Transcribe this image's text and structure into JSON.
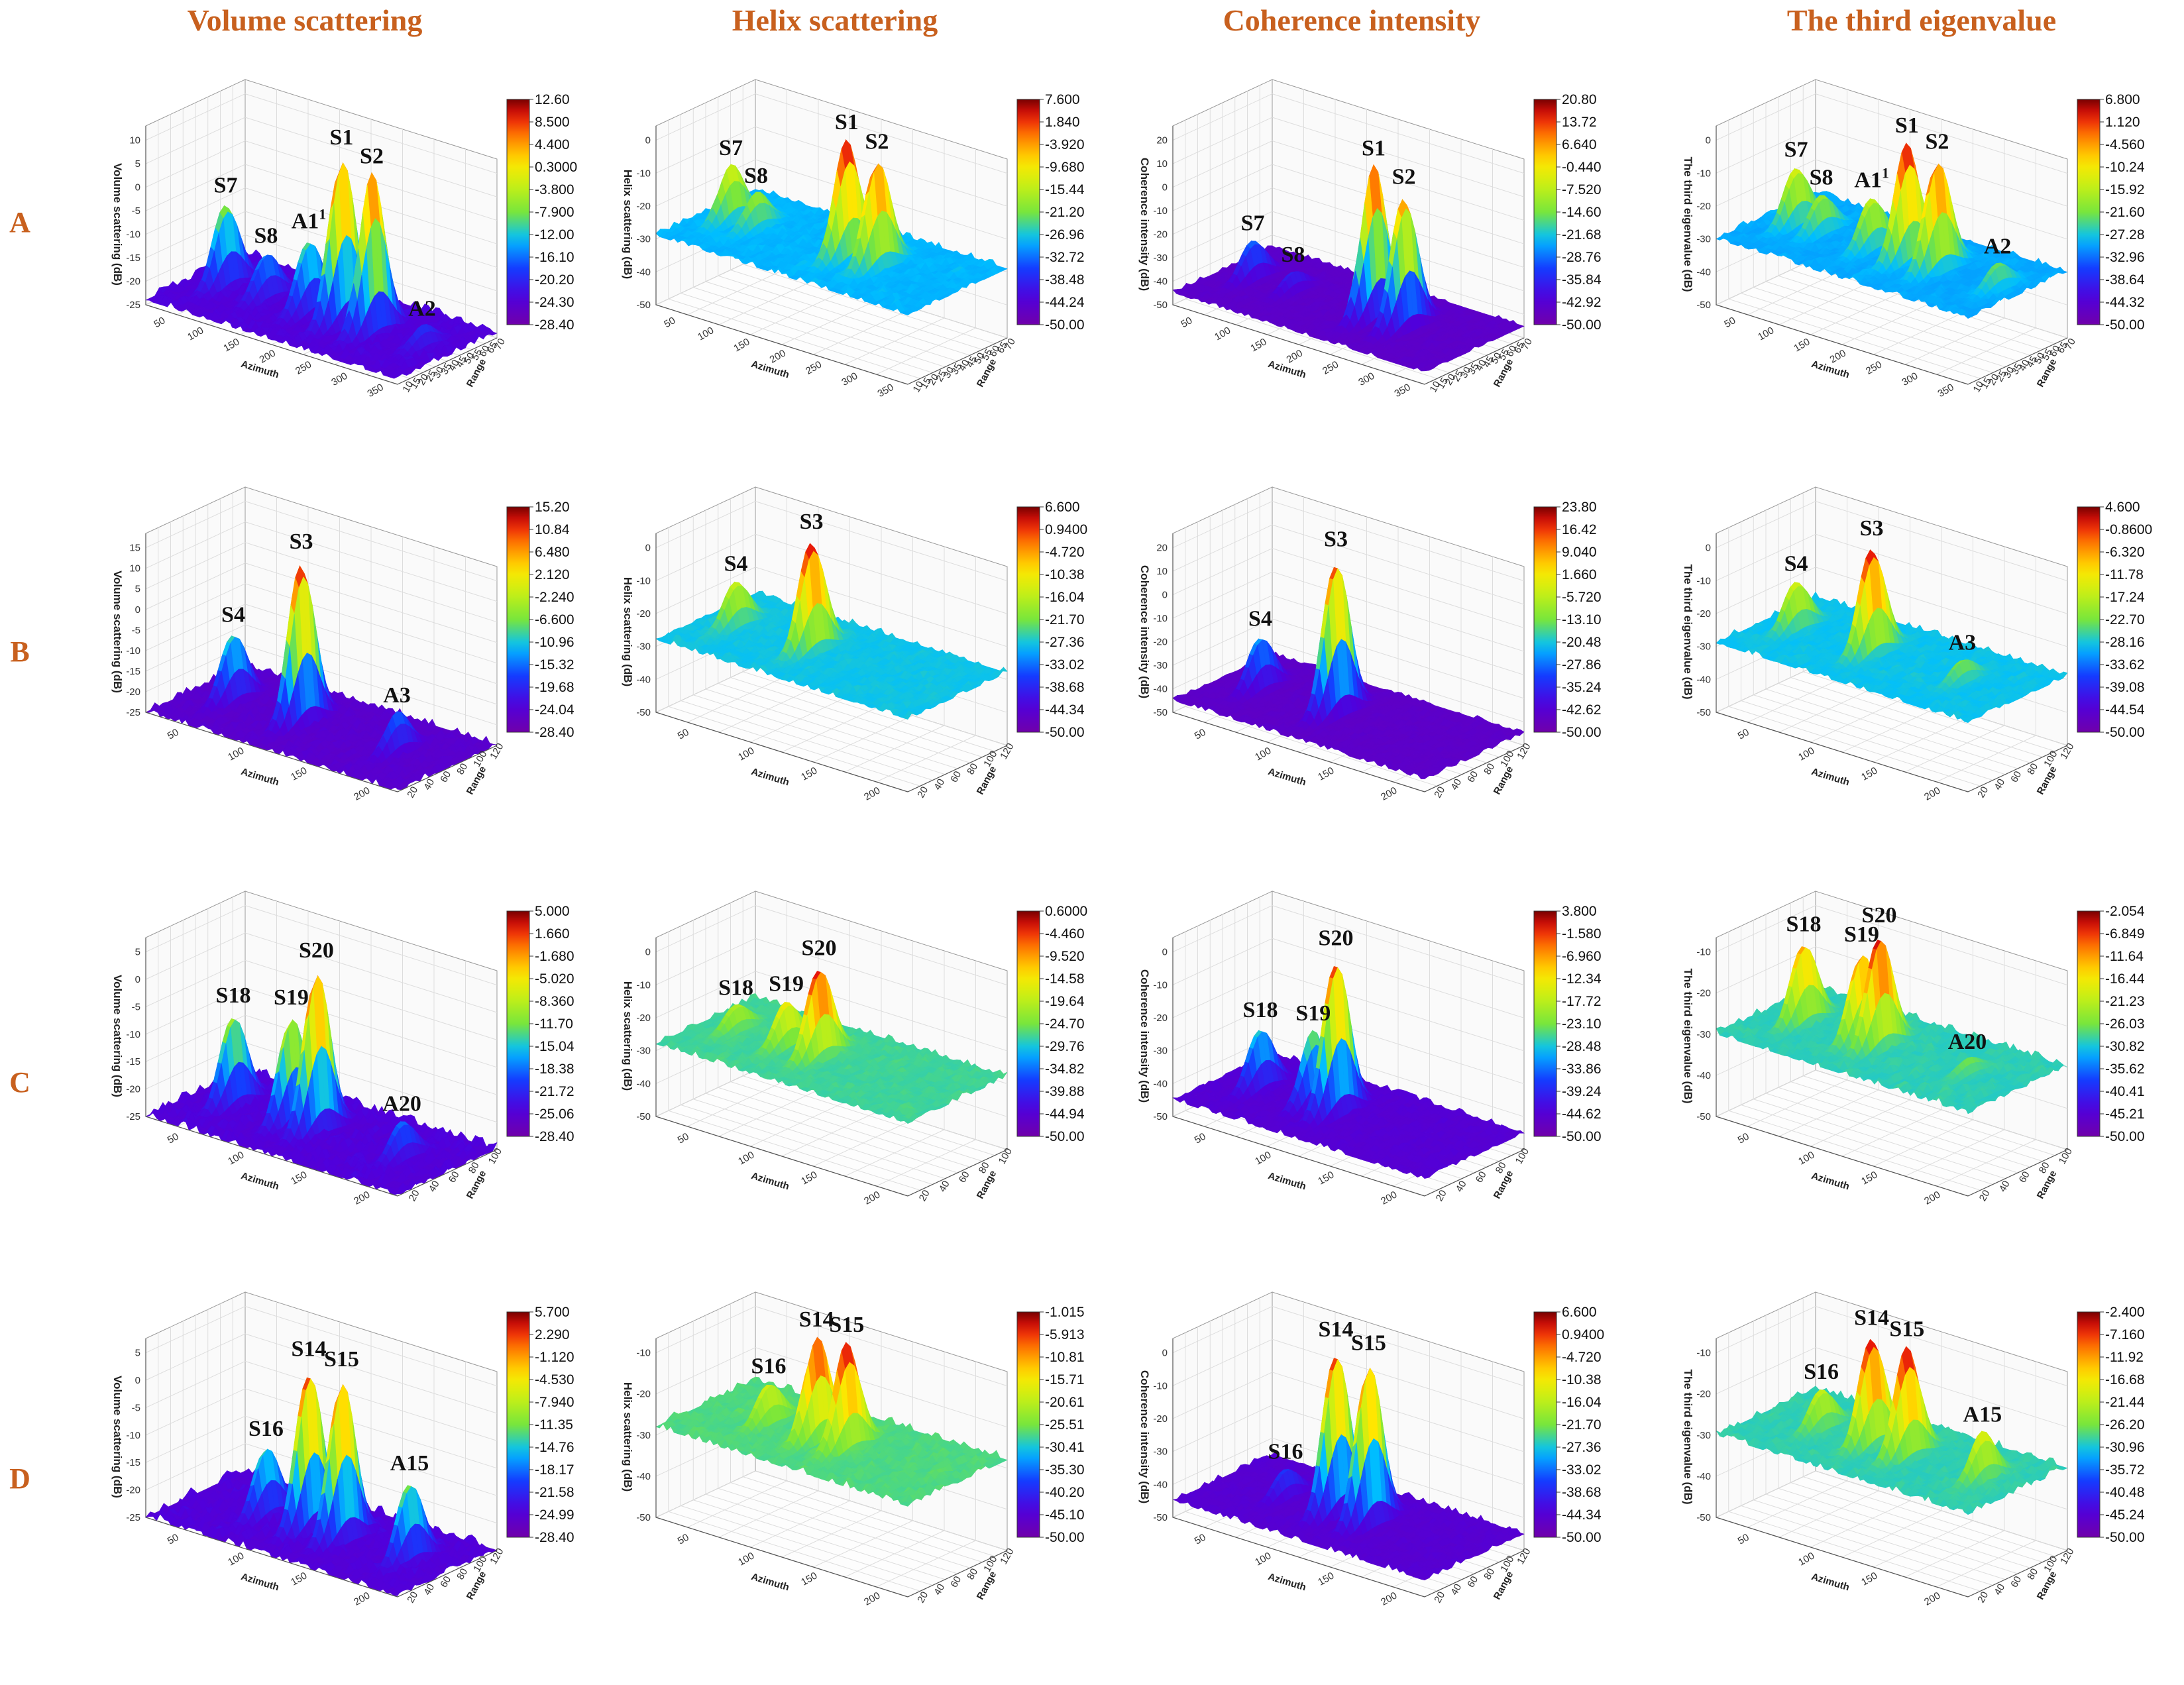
{
  "column_titles": [
    "Volume scattering",
    "Helix scattering",
    "Coherence intensity",
    "The third eigenvalue"
  ],
  "row_labels": [
    "A",
    "B",
    "C",
    "D"
  ],
  "chart_data": [
    {
      "id": "A1",
      "type": "surface3d",
      "ylabel": "Volume scattering (dB)",
      "xlabel": "Azimuth",
      "zlabel": "Range",
      "zticks": [
        "-25",
        "-20",
        "-15",
        "-10",
        "-5",
        "0",
        "5",
        "10"
      ],
      "zrange": [
        -28.4,
        12.6
      ],
      "colorbar": [
        "12.60",
        "8.500",
        "4.400",
        "0.3000",
        "-3.800",
        "-7.900",
        "-12.00",
        "-16.10",
        "-20.20",
        "-24.30",
        "-28.40"
      ],
      "xticks": [
        "50",
        "100",
        "150",
        "200",
        "250",
        "300",
        "350"
      ],
      "rticks": [
        "10",
        "15",
        "20",
        "25",
        "30",
        "35",
        "40",
        "45",
        "50",
        "55",
        "60",
        "65",
        "70"
      ],
      "base": -24,
      "peaks": [
        {
          "label": "S7",
          "x": 0.12,
          "r": 0.5,
          "z": -6
        },
        {
          "label": "S8",
          "x": 0.28,
          "r": 0.5,
          "z": -14
        },
        {
          "label": "A1",
          "sup": "1",
          "x": 0.45,
          "r": 0.5,
          "z": -8
        },
        {
          "label": "S1",
          "x": 0.58,
          "r": 0.5,
          "z": 12
        },
        {
          "label": "S2",
          "x": 0.7,
          "r": 0.5,
          "z": 10
        },
        {
          "label": "A2",
          "x": 0.9,
          "r": 0.5,
          "z": -19
        }
      ]
    },
    {
      "id": "A2",
      "type": "surface3d",
      "ylabel": "Helix scattering (dB)",
      "xlabel": "Azimuth",
      "zlabel": "Range",
      "zticks": [
        "-50",
        "-40",
        "-30",
        "-20",
        "-10",
        "0"
      ],
      "zrange": [
        -50,
        7.6
      ],
      "colorbar": [
        "7.600",
        "1.840",
        "-3.920",
        "-9.680",
        "-15.44",
        "-21.20",
        "-26.96",
        "-32.72",
        "-38.48",
        "-44.24",
        "-50.00"
      ],
      "xticks": [
        "50",
        "100",
        "150",
        "200",
        "250",
        "300",
        "350"
      ],
      "rticks": [
        "10",
        "15",
        "20",
        "25",
        "30",
        "35",
        "40",
        "45",
        "50",
        "55",
        "60",
        "65",
        "70"
      ],
      "base": -29,
      "peaks": [
        {
          "label": "S7",
          "x": 0.1,
          "r": 0.5,
          "z": -12
        },
        {
          "label": "S8",
          "x": 0.2,
          "r": 0.5,
          "z": -18
        },
        {
          "label": "S1",
          "x": 0.56,
          "r": 0.5,
          "z": 7
        },
        {
          "label": "S2",
          "x": 0.68,
          "r": 0.5,
          "z": 4
        }
      ]
    },
    {
      "id": "A3",
      "type": "surface3d",
      "ylabel": "Coherence intensity (dB)",
      "xlabel": "Azimuth",
      "zlabel": "Range",
      "zticks": [
        "-50",
        "-40",
        "-30",
        "-20",
        "-10",
        "0",
        "10",
        "20"
      ],
      "zrange": [
        -50,
        20.8
      ],
      "colorbar": [
        "20.80",
        "13.72",
        "6.640",
        "-0.440",
        "-7.520",
        "-14.60",
        "-21.68",
        "-28.76",
        "-35.84",
        "-42.92",
        "-50.00"
      ],
      "xticks": [
        "50",
        "100",
        "150",
        "200",
        "250",
        "300",
        "350"
      ],
      "rticks": [
        "10",
        "15",
        "20",
        "25",
        "30",
        "35",
        "40",
        "45",
        "50",
        "55",
        "60",
        "65",
        "70"
      ],
      "base": -45,
      "peaks": [
        {
          "label": "S7",
          "x": 0.12,
          "r": 0.5,
          "z": -28
        },
        {
          "label": "S8",
          "x": 0.28,
          "r": 0.5,
          "z": -36
        },
        {
          "label": "S1",
          "x": 0.6,
          "r": 0.5,
          "z": 20
        },
        {
          "label": "S2",
          "x": 0.72,
          "r": 0.5,
          "z": 12
        }
      ]
    },
    {
      "id": "A4",
      "type": "surface3d",
      "ylabel": "The third eigenvalue (dB)",
      "xlabel": "Azimuth",
      "zlabel": "Range",
      "zticks": [
        "-50",
        "-40",
        "-30",
        "-20",
        "-10",
        "0"
      ],
      "zrange": [
        -50,
        6.8
      ],
      "colorbar": [
        "6.800",
        "1.120",
        "-4.560",
        "-10.24",
        "-15.92",
        "-21.60",
        "-27.28",
        "-32.96",
        "-38.64",
        "-44.32",
        "-50.00"
      ],
      "xticks": [
        "50",
        "100",
        "150",
        "200",
        "250",
        "300",
        "350"
      ],
      "rticks": [
        "10",
        "15",
        "20",
        "25",
        "30",
        "35",
        "40",
        "45",
        "50",
        "55",
        "60",
        "65",
        "70"
      ],
      "base": -30,
      "peaks": [
        {
          "label": "S7",
          "x": 0.12,
          "r": 0.5,
          "z": -12
        },
        {
          "label": "S8",
          "x": 0.22,
          "r": 0.5,
          "z": -18
        },
        {
          "label": "A1",
          "sup": "1",
          "x": 0.42,
          "r": 0.5,
          "z": -14
        },
        {
          "label": "S1",
          "x": 0.56,
          "r": 0.5,
          "z": 6
        },
        {
          "label": "S2",
          "x": 0.68,
          "r": 0.5,
          "z": 4
        },
        {
          "label": "A2",
          "x": 0.92,
          "r": 0.5,
          "z": -22
        }
      ]
    },
    {
      "id": "B1",
      "type": "surface3d",
      "ylabel": "Volume scattering (dB)",
      "xlabel": "Azimuth",
      "zlabel": "Range",
      "zticks": [
        "-25",
        "-20",
        "-15",
        "-10",
        "-5",
        "0",
        "5",
        "10",
        "15"
      ],
      "zrange": [
        -28.4,
        15.2
      ],
      "colorbar": [
        "15.20",
        "10.84",
        "6.480",
        "2.120",
        "-2.240",
        "-6.600",
        "-10.96",
        "-15.32",
        "-19.68",
        "-24.04",
        "-28.40"
      ],
      "xticks": [
        "50",
        "100",
        "150",
        "200"
      ],
      "rticks": [
        "20",
        "40",
        "60",
        "80",
        "100",
        "120"
      ],
      "base": -25,
      "peaks": [
        {
          "label": "S4",
          "x": 0.15,
          "r": 0.5,
          "z": -8
        },
        {
          "label": "S3",
          "x": 0.42,
          "r": 0.5,
          "z": 15
        },
        {
          "label": "A3",
          "x": 0.8,
          "r": 0.5,
          "z": -15
        }
      ]
    },
    {
      "id": "B2",
      "type": "surface3d",
      "ylabel": "Helix scattering (dB)",
      "xlabel": "Azimuth",
      "zlabel": "Range",
      "zticks": [
        "-50",
        "-40",
        "-30",
        "-20",
        "-10",
        "0"
      ],
      "zrange": [
        -50,
        6.6
      ],
      "colorbar": [
        "6.600",
        "0.9400",
        "-4.720",
        "-10.38",
        "-16.04",
        "-21.70",
        "-27.36",
        "-33.02",
        "-38.68",
        "-44.34",
        "-50.00"
      ],
      "xticks": [
        "50",
        "100",
        "150",
        "200"
      ],
      "rticks": [
        "20",
        "40",
        "60",
        "80",
        "100",
        "120"
      ],
      "base": -28,
      "peaks": [
        {
          "label": "S4",
          "x": 0.12,
          "r": 0.5,
          "z": -14
        },
        {
          "label": "S3",
          "x": 0.42,
          "r": 0.5,
          "z": 6
        }
      ]
    },
    {
      "id": "B3",
      "type": "surface3d",
      "ylabel": "Coherence intensity (dB)",
      "xlabel": "Azimuth",
      "zlabel": "Range",
      "zticks": [
        "-50",
        "-40",
        "-30",
        "-20",
        "-10",
        "0",
        "10",
        "20"
      ],
      "zrange": [
        -50,
        23.8
      ],
      "colorbar": [
        "23.80",
        "16.42",
        "9.040",
        "1.660",
        "-5.720",
        "-13.10",
        "-20.48",
        "-27.86",
        "-35.24",
        "-42.62",
        "-50.00"
      ],
      "xticks": [
        "50",
        "100",
        "150",
        "200"
      ],
      "rticks": [
        "20",
        "40",
        "60",
        "80",
        "100",
        "120"
      ],
      "base": -45,
      "peaks": [
        {
          "label": "S4",
          "x": 0.15,
          "r": 0.5,
          "z": -22
        },
        {
          "label": "S3",
          "x": 0.45,
          "r": 0.5,
          "z": 22
        }
      ]
    },
    {
      "id": "B4",
      "type": "surface3d",
      "ylabel": "The third eigenvalue (dB)",
      "xlabel": "Azimuth",
      "zlabel": "Range",
      "zticks": [
        "-50",
        "-40",
        "-30",
        "-20",
        "-10",
        "0"
      ],
      "zrange": [
        -50,
        4.6
      ],
      "colorbar": [
        "4.600",
        "-0.8600",
        "-6.320",
        "-11.78",
        "-17.24",
        "-22.70",
        "-28.16",
        "-33.62",
        "-39.08",
        "-44.54",
        "-50.00"
      ],
      "xticks": [
        "50",
        "100",
        "150",
        "200"
      ],
      "rticks": [
        "20",
        "40",
        "60",
        "80",
        "100",
        "120"
      ],
      "base": -29,
      "peaks": [
        {
          "label": "S4",
          "x": 0.12,
          "r": 0.5,
          "z": -14
        },
        {
          "label": "S3",
          "x": 0.42,
          "r": 0.5,
          "z": 4
        },
        {
          "label": "A3",
          "x": 0.78,
          "r": 0.5,
          "z": -22
        }
      ]
    },
    {
      "id": "C1",
      "type": "surface3d",
      "ylabel": "Volume scattering (dB)",
      "xlabel": "Azimuth",
      "zlabel": "Range",
      "zticks": [
        "-25",
        "-20",
        "-15",
        "-10",
        "-5",
        "0",
        "5"
      ],
      "zrange": [
        -28.4,
        5
      ],
      "colorbar": [
        "5.000",
        "1.660",
        "-1.680",
        "-5.020",
        "-8.360",
        "-11.70",
        "-15.04",
        "-18.38",
        "-21.72",
        "-25.06",
        "-28.40"
      ],
      "xticks": [
        "50",
        "100",
        "150",
        "200"
      ],
      "rticks": [
        "20",
        "40",
        "60",
        "80",
        "100"
      ],
      "base": -25,
      "peaks": [
        {
          "label": "S18",
          "x": 0.15,
          "r": 0.5,
          "z": -8
        },
        {
          "label": "S19",
          "x": 0.38,
          "r": 0.5,
          "z": -5
        },
        {
          "label": "S20",
          "x": 0.48,
          "r": 0.5,
          "z": 5
        },
        {
          "label": "A20",
          "x": 0.82,
          "r": 0.5,
          "z": -18
        }
      ]
    },
    {
      "id": "C2",
      "type": "surface3d",
      "ylabel": "Helix scattering (dB)",
      "xlabel": "Azimuth",
      "zlabel": "Range",
      "zticks": [
        "-50",
        "-40",
        "-30",
        "-20",
        "-10",
        "0"
      ],
      "zrange": [
        -50,
        0.6
      ],
      "colorbar": [
        "0.6000",
        "-4.460",
        "-9.520",
        "-14.58",
        "-19.64",
        "-24.70",
        "-29.76",
        "-34.82",
        "-39.88",
        "-44.94",
        "-50.00"
      ],
      "xticks": [
        "50",
        "100",
        "150",
        "200"
      ],
      "rticks": [
        "20",
        "40",
        "60",
        "80",
        "100"
      ],
      "base": -28,
      "peaks": [
        {
          "label": "S18",
          "x": 0.12,
          "r": 0.5,
          "z": -20
        },
        {
          "label": "S19",
          "x": 0.32,
          "r": 0.5,
          "z": -14
        },
        {
          "label": "S20",
          "x": 0.45,
          "r": 0.5,
          "z": 0
        }
      ]
    },
    {
      "id": "C3",
      "type": "surface3d",
      "ylabel": "Coherence intensity (dB)",
      "xlabel": "Azimuth",
      "zlabel": "Range",
      "zticks": [
        "-50",
        "-40",
        "-30",
        "-20",
        "-10",
        "0"
      ],
      "zrange": [
        -50,
        3.8
      ],
      "colorbar": [
        "3.800",
        "-1.580",
        "-6.960",
        "-12.34",
        "-17.72",
        "-23.10",
        "-28.48",
        "-33.86",
        "-39.24",
        "-44.62",
        "-50.00"
      ],
      "xticks": [
        "50",
        "100",
        "150",
        "200"
      ],
      "rticks": [
        "20",
        "40",
        "60",
        "80",
        "100"
      ],
      "base": -45,
      "peaks": [
        {
          "label": "S18",
          "x": 0.15,
          "r": 0.5,
          "z": -26
        },
        {
          "label": "S19",
          "x": 0.36,
          "r": 0.5,
          "z": -22
        },
        {
          "label": "S20",
          "x": 0.45,
          "r": 0.5,
          "z": 3
        }
      ]
    },
    {
      "id": "C4",
      "type": "surface3d",
      "ylabel": "The third eigenvalue (dB)",
      "xlabel": "Azimuth",
      "zlabel": "Range",
      "zticks": [
        "-50",
        "-40",
        "-30",
        "-20",
        "-10"
      ],
      "zrange": [
        -50,
        -2.054
      ],
      "colorbar": [
        "-2.054",
        "-6.849",
        "-11.64",
        "-16.44",
        "-21.23",
        "-26.03",
        "-30.82",
        "-35.62",
        "-40.41",
        "-45.21",
        "-50.00"
      ],
      "xticks": [
        "50",
        "100",
        "150",
        "200"
      ],
      "rticks": [
        "20",
        "40",
        "60",
        "80",
        "100"
      ],
      "base": -30,
      "peaks": [
        {
          "label": "S18",
          "x": 0.15,
          "r": 0.5,
          "z": -10
        },
        {
          "label": "S19",
          "x": 0.38,
          "r": 0.5,
          "z": -8
        },
        {
          "label": "S20",
          "x": 0.45,
          "r": 0.5,
          "z": -2
        },
        {
          "label": "A20",
          "x": 0.8,
          "r": 0.5,
          "z": -26
        }
      ]
    },
    {
      "id": "D1",
      "type": "surface3d",
      "ylabel": "Volume scattering (dB)",
      "xlabel": "Azimuth",
      "zlabel": "Range",
      "zticks": [
        "-25",
        "-20",
        "-15",
        "-10",
        "-5",
        "0",
        "5"
      ],
      "zrange": [
        -28.4,
        5.7
      ],
      "colorbar": [
        "5.700",
        "2.290",
        "-1.120",
        "-4.530",
        "-7.940",
        "-11.35",
        "-14.76",
        "-18.17",
        "-21.58",
        "-24.99",
        "-28.40"
      ],
      "xticks": [
        "50",
        "100",
        "150",
        "200"
      ],
      "rticks": [
        "20",
        "40",
        "60",
        "80",
        "100",
        "120"
      ],
      "base": -25,
      "peaks": [
        {
          "label": "S16",
          "x": 0.28,
          "r": 0.5,
          "z": -12
        },
        {
          "label": "S14",
          "x": 0.45,
          "r": 0.5,
          "z": 5
        },
        {
          "label": "S15",
          "x": 0.58,
          "r": 0.5,
          "z": 5
        },
        {
          "label": "A15",
          "x": 0.85,
          "r": 0.5,
          "z": -10
        }
      ]
    },
    {
      "id": "D2",
      "type": "surface3d",
      "ylabel": "Helix scattering (dB)",
      "xlabel": "Azimuth",
      "zlabel": "Range",
      "zticks": [
        "-50",
        "-40",
        "-30",
        "-20",
        "-10"
      ],
      "zrange": [
        -50,
        -1.015
      ],
      "colorbar": [
        "-1.015",
        "-5.913",
        "-10.81",
        "-15.71",
        "-20.61",
        "-25.51",
        "-30.41",
        "-35.30",
        "-40.20",
        "-45.10",
        "-50.00"
      ],
      "xticks": [
        "50",
        "100",
        "150",
        "200"
      ],
      "rticks": [
        "20",
        "40",
        "60",
        "80",
        "100",
        "120"
      ],
      "base": -28,
      "peaks": [
        {
          "label": "S16",
          "x": 0.25,
          "r": 0.5,
          "z": -18
        },
        {
          "label": "S14",
          "x": 0.44,
          "r": 0.5,
          "z": -3
        },
        {
          "label": "S15",
          "x": 0.56,
          "r": 0.5,
          "z": -2
        }
      ]
    },
    {
      "id": "D3",
      "type": "surface3d",
      "ylabel": "Coherence intensity (dB)",
      "xlabel": "Azimuth",
      "zlabel": "Range",
      "zticks": [
        "-50",
        "-40",
        "-30",
        "-20",
        "-10",
        "0"
      ],
      "zrange": [
        -50,
        6.6
      ],
      "colorbar": [
        "6.600",
        "0.9400",
        "-4.720",
        "-10.38",
        "-16.04",
        "-21.70",
        "-27.36",
        "-33.02",
        "-38.68",
        "-44.34",
        "-50.00"
      ],
      "xticks": [
        "50",
        "100",
        "150",
        "200"
      ],
      "rticks": [
        "20",
        "40",
        "60",
        "80",
        "100",
        "120"
      ],
      "base": -45,
      "peaks": [
        {
          "label": "S16",
          "x": 0.25,
          "r": 0.5,
          "z": -36
        },
        {
          "label": "S14",
          "x": 0.45,
          "r": 0.5,
          "z": 6
        },
        {
          "label": "S15",
          "x": 0.58,
          "r": 0.5,
          "z": 5
        }
      ]
    },
    {
      "id": "D4",
      "type": "surface3d",
      "ylabel": "The third eigenvalue (dB)",
      "xlabel": "Azimuth",
      "zlabel": "Range",
      "zticks": [
        "-50",
        "-40",
        "-30",
        "-20",
        "-10"
      ],
      "zrange": [
        -50,
        -2.4
      ],
      "colorbar": [
        "-2.400",
        "-7.160",
        "-11.92",
        "-16.68",
        "-21.44",
        "-26.20",
        "-30.96",
        "-35.72",
        "-40.48",
        "-45.24",
        "-50.00"
      ],
      "xticks": [
        "50",
        "100",
        "150",
        "200"
      ],
      "rticks": [
        "20",
        "40",
        "60",
        "80",
        "100",
        "120"
      ],
      "base": -30,
      "peaks": [
        {
          "label": "S16",
          "x": 0.22,
          "r": 0.5,
          "z": -20
        },
        {
          "label": "S14",
          "x": 0.42,
          "r": 0.5,
          "z": -3
        },
        {
          "label": "S15",
          "x": 0.56,
          "r": 0.5,
          "z": -3
        },
        {
          "label": "A15",
          "x": 0.86,
          "r": 0.5,
          "z": -18
        }
      ]
    }
  ]
}
